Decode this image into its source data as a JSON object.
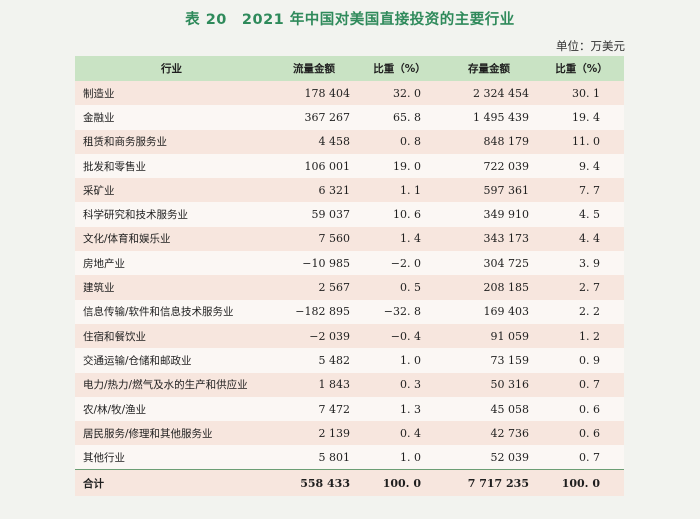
{
  "title": "表 20　2021 年中国对美国直接投资的主要行业",
  "unit": "单位：万美元",
  "columns": {
    "industry": "行业",
    "flow": "流量金额",
    "flow_pct": "比重（%）",
    "stock": "存量金额",
    "stock_pct": "比重（%）"
  },
  "rows": [
    {
      "industry": "制造业",
      "flow": "178 404",
      "flow_pct": "32. 0",
      "stock": "2 324 454",
      "stock_pct": "30. 1"
    },
    {
      "industry": "金融业",
      "flow": "367 267",
      "flow_pct": "65. 8",
      "stock": "1 495 439",
      "stock_pct": "19. 4"
    },
    {
      "industry": "租赁和商务服务业",
      "flow": "4 458",
      "flow_pct": "0. 8",
      "stock": "848 179",
      "stock_pct": "11. 0"
    },
    {
      "industry": "批发和零售业",
      "flow": "106 001",
      "flow_pct": "19. 0",
      "stock": "722 039",
      "stock_pct": "9. 4"
    },
    {
      "industry": "采矿业",
      "flow": "6 321",
      "flow_pct": "1. 1",
      "stock": "597 361",
      "stock_pct": "7. 7"
    },
    {
      "industry": "科学研究和技术服务业",
      "flow": "59 037",
      "flow_pct": "10. 6",
      "stock": "349 910",
      "stock_pct": "4. 5"
    },
    {
      "industry": "文化/体育和娱乐业",
      "flow": "7 560",
      "flow_pct": "1. 4",
      "stock": "343 173",
      "stock_pct": "4. 4"
    },
    {
      "industry": "房地产业",
      "flow": "−10 985",
      "flow_pct": "−2. 0",
      "stock": "304 725",
      "stock_pct": "3. 9"
    },
    {
      "industry": "建筑业",
      "flow": "2 567",
      "flow_pct": "0. 5",
      "stock": "208 185",
      "stock_pct": "2. 7"
    },
    {
      "industry": "信息传输/软件和信息技术服务业",
      "flow": "−182 895",
      "flow_pct": "−32. 8",
      "stock": "169 403",
      "stock_pct": "2. 2"
    },
    {
      "industry": "住宿和餐饮业",
      "flow": "−2 039",
      "flow_pct": "−0. 4",
      "stock": "91 059",
      "stock_pct": "1. 2"
    },
    {
      "industry": "交通运输/仓储和邮政业",
      "flow": "5 482",
      "flow_pct": "1. 0",
      "stock": "73 159",
      "stock_pct": "0. 9"
    },
    {
      "industry": "电力/热力/燃气及水的生产和供应业",
      "flow": "1 843",
      "flow_pct": "0. 3",
      "stock": "50 316",
      "stock_pct": "0. 7"
    },
    {
      "industry": "农/林/牧/渔业",
      "flow": "7 472",
      "flow_pct": "1. 3",
      "stock": "45 058",
      "stock_pct": "0. 6"
    },
    {
      "industry": "居民服务/修理和其他服务业",
      "flow": "2 139",
      "flow_pct": "0. 4",
      "stock": "42 736",
      "stock_pct": "0. 6"
    },
    {
      "industry": "其他行业",
      "flow": "5 801",
      "flow_pct": "1. 0",
      "stock": "52 039",
      "stock_pct": "0. 7"
    }
  ],
  "total": {
    "industry": "合计",
    "flow": "558 433",
    "flow_pct": "100. 0",
    "stock": "7 717 235",
    "stock_pct": "100. 0"
  },
  "colors": {
    "title": "#2f8a5b",
    "header_bg": "#c9e3c4",
    "row_odd": "#f7e6de",
    "row_even": "#fbf7f4",
    "rule": "#6c9e74"
  }
}
